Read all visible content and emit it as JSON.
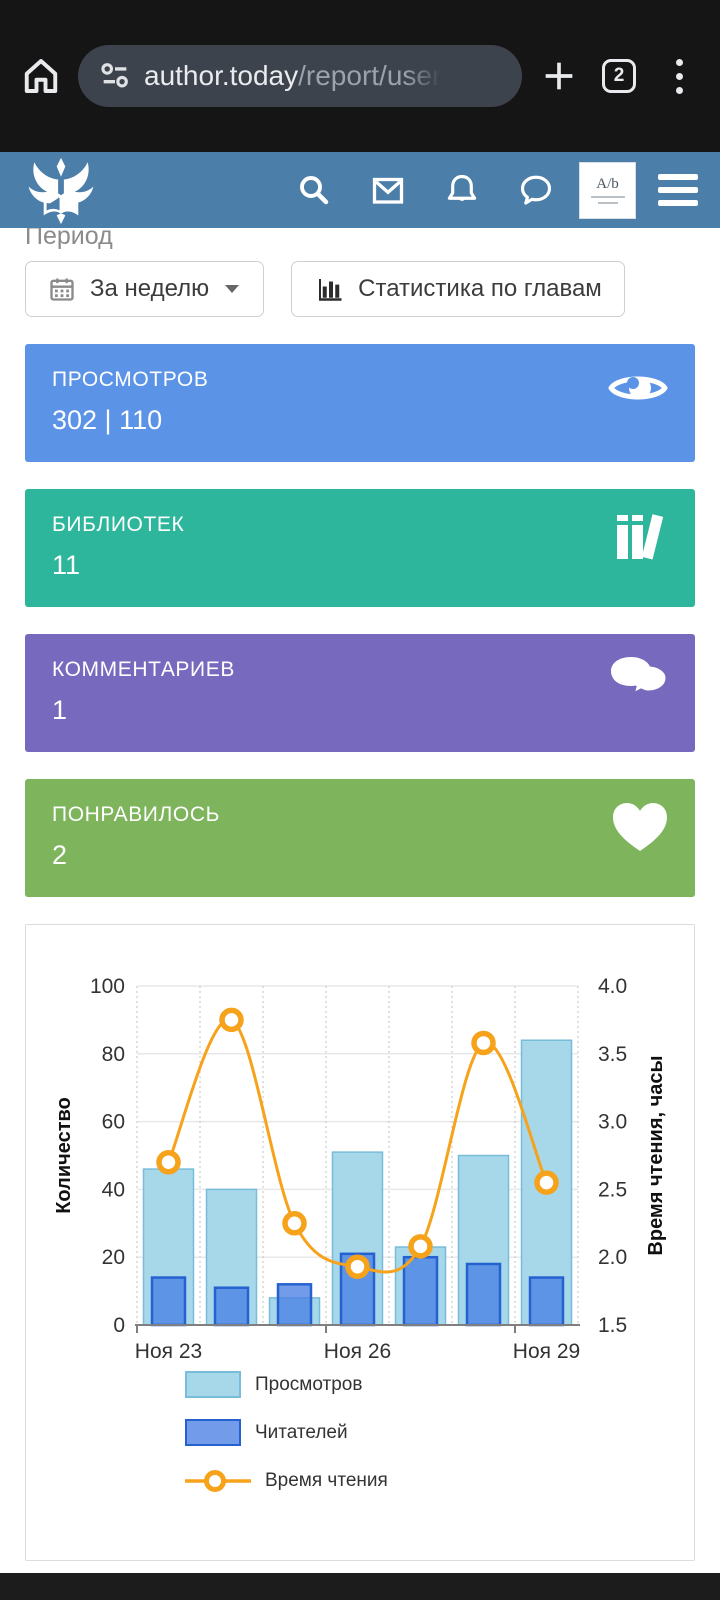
{
  "browser": {
    "url_host": "author.today",
    "url_path": "/report/user",
    "tab_count": "2"
  },
  "header": {
    "bg": "#4b7ea8",
    "icons": [
      "search-icon",
      "mail-icon",
      "bell-icon",
      "chat-icon"
    ],
    "avatar_monogram": "A/b"
  },
  "filters": {
    "label": "Период",
    "period_button": "За неделю",
    "chapters_button": "Статистика по главам"
  },
  "stat_cards": [
    {
      "title": "ПРОСМОТРОВ",
      "value": "302 | 110",
      "color": "#5b93e7",
      "icon": "eye-icon"
    },
    {
      "title": "БИБЛИОТЕК",
      "value": "11",
      "color": "#2db69b",
      "icon": "books-icon"
    },
    {
      "title": "КОММЕНТАРИЕВ",
      "value": "1",
      "color": "#7769bd",
      "icon": "comments-icon"
    },
    {
      "title": "ПОНРАВИЛОСЬ",
      "value": "2",
      "color": "#7db45c",
      "icon": "heart-icon"
    }
  ],
  "chart_data": {
    "type": "bar",
    "n_points": 7,
    "x_tick_labels": [
      "Ноя 23",
      "Ноя 26",
      "Ноя 29"
    ],
    "x_tick_slots": [
      0,
      3,
      6
    ],
    "series": [
      {
        "name": "Просмотров",
        "type": "bar",
        "axis": "left",
        "values": [
          46,
          40,
          8,
          51,
          23,
          50,
          84
        ],
        "fill": "#a6d8ea",
        "border": "#79bcd9"
      },
      {
        "name": "Читателей",
        "type": "bar",
        "axis": "left",
        "values": [
          14,
          11,
          12,
          21,
          20,
          18,
          14
        ],
        "fill": "#4a80e4",
        "border": "#2561cf"
      },
      {
        "name": "Время чтения",
        "type": "line",
        "axis": "right",
        "values": [
          2.7,
          3.75,
          2.25,
          1.93,
          2.08,
          3.58,
          2.55
        ],
        "color": "#f7a21b"
      }
    ],
    "left_axis": {
      "label": "Количество",
      "min": 0,
      "max": 100,
      "ticks": [
        0,
        20,
        40,
        60,
        80,
        100
      ]
    },
    "right_axis": {
      "label": "Время чтения, часы",
      "min": 1.5,
      "max": 4.0,
      "ticks": [
        1.5,
        2.0,
        2.5,
        3.0,
        3.5,
        4.0
      ]
    },
    "grid": true,
    "legend_position": "bottom"
  }
}
